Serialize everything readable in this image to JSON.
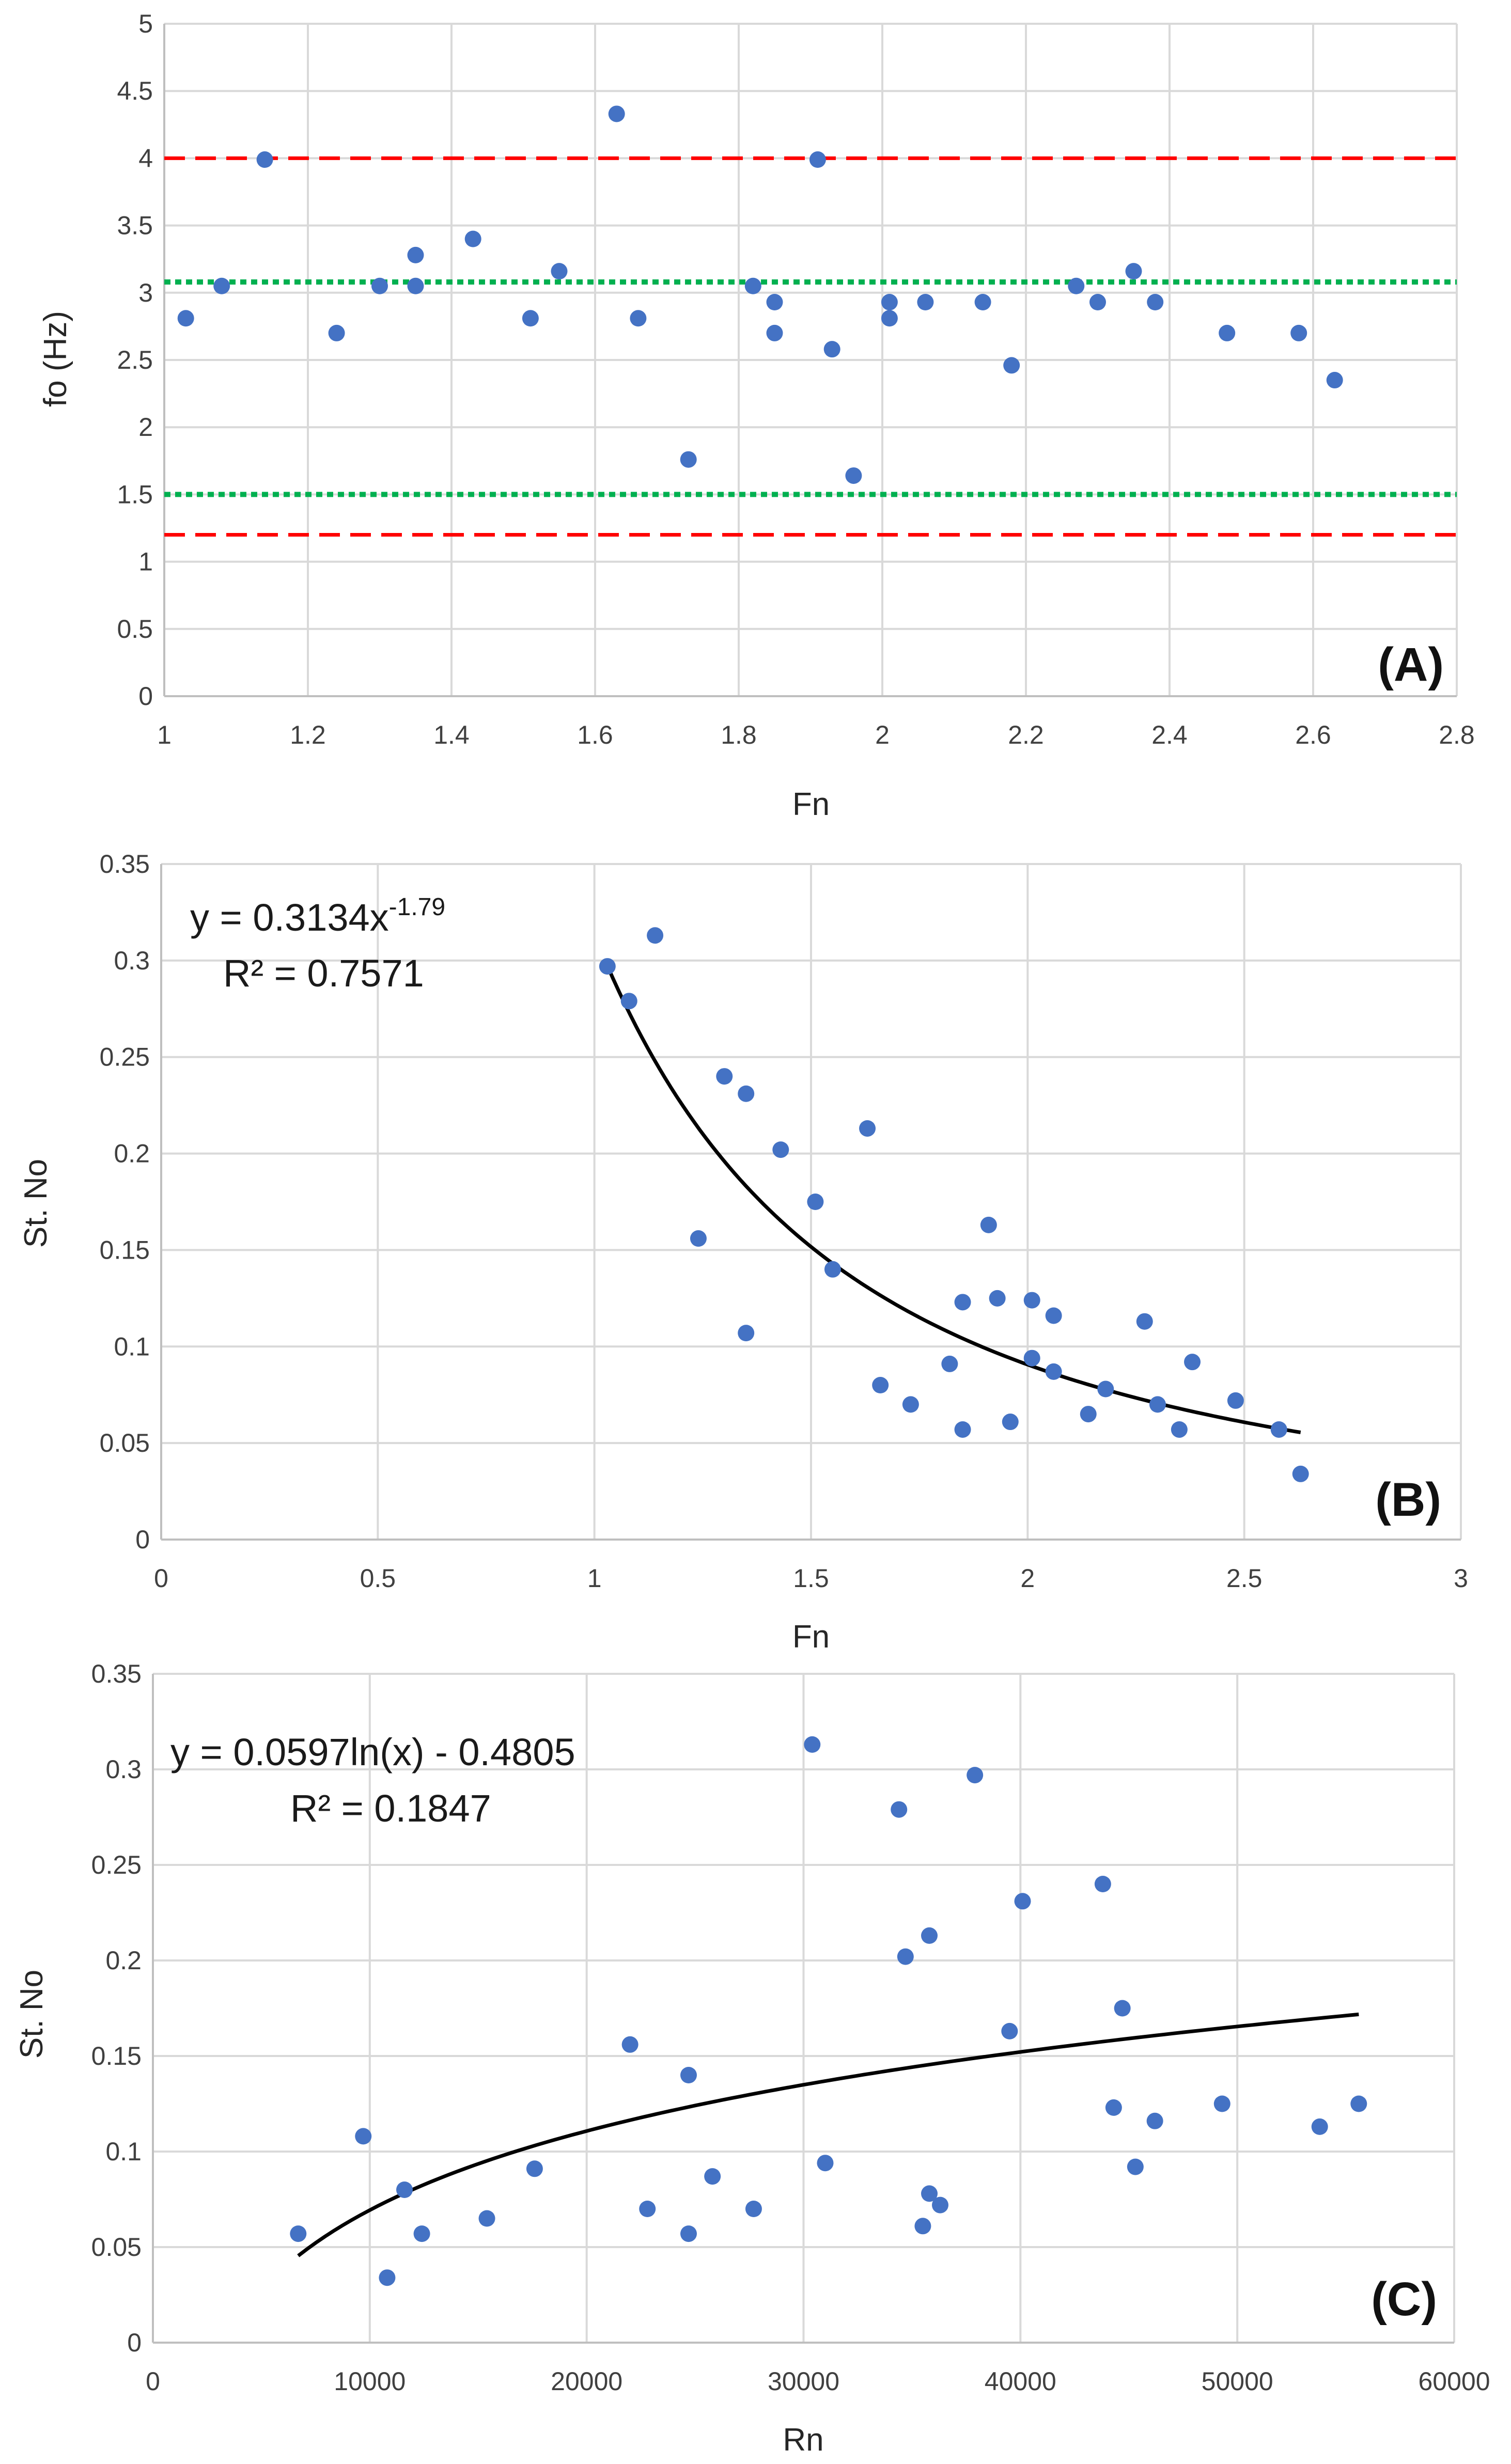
{
  "chart_data": [
    {
      "type": "scatter",
      "panel_label": "(A)",
      "xlabel": "Fn",
      "ylabel": "fo (Hz)",
      "xlim": [
        1,
        2.8
      ],
      "ylim": [
        0,
        5
      ],
      "x_ticks": [
        "1",
        "1.2",
        "1.4",
        "1.6",
        "1.8",
        "2",
        "2.2",
        "2.4",
        "2.6",
        "2.8"
      ],
      "y_ticks": [
        "0",
        "0.5",
        "1",
        "1.5",
        "2",
        "2.5",
        "3",
        "3.5",
        "4",
        "4.5",
        "5"
      ],
      "grid": true,
      "point_color": "#4472c4",
      "points": [
        [
          1.03,
          2.81
        ],
        [
          1.08,
          3.05
        ],
        [
          1.14,
          3.99
        ],
        [
          1.24,
          2.7
        ],
        [
          1.3,
          3.05
        ],
        [
          1.35,
          3.05
        ],
        [
          1.35,
          3.28
        ],
        [
          1.43,
          3.4
        ],
        [
          1.51,
          2.81
        ],
        [
          1.55,
          3.16
        ],
        [
          1.63,
          4.33
        ],
        [
          1.66,
          2.81
        ],
        [
          1.73,
          1.76
        ],
        [
          1.82,
          3.05
        ],
        [
          1.85,
          2.7
        ],
        [
          1.85,
          2.93
        ],
        [
          1.91,
          3.99
        ],
        [
          1.93,
          2.58
        ],
        [
          1.96,
          1.64
        ],
        [
          2.01,
          2.81
        ],
        [
          2.01,
          2.93
        ],
        [
          2.06,
          2.93
        ],
        [
          2.14,
          2.93
        ],
        [
          2.18,
          2.46
        ],
        [
          2.27,
          3.05
        ],
        [
          2.3,
          2.93
        ],
        [
          2.35,
          3.16
        ],
        [
          2.38,
          2.93
        ],
        [
          2.48,
          2.7
        ],
        [
          2.58,
          2.7
        ],
        [
          2.63,
          2.35
        ]
      ],
      "reference_lines": [
        {
          "y": 4.0,
          "color": "#ff0000",
          "style": "dashed"
        },
        {
          "y": 1.2,
          "color": "#ff0000",
          "style": "dashed"
        },
        {
          "y": 3.08,
          "color": "#00b050",
          "style": "dotted"
        },
        {
          "y": 1.5,
          "color": "#00b050",
          "style": "dotted"
        }
      ]
    },
    {
      "type": "scatter",
      "panel_label": "(B)",
      "xlabel": "Fn",
      "ylabel": "St. No",
      "xlim": [
        0,
        3
      ],
      "ylim": [
        0,
        0.35
      ],
      "x_ticks": [
        "0",
        "0.5",
        "1",
        "1.5",
        "2",
        "2.5",
        "3"
      ],
      "y_ticks": [
        "0",
        "0.05",
        "0.1",
        "0.15",
        "0.2",
        "0.25",
        "0.3",
        "0.35"
      ],
      "grid": true,
      "point_color": "#4472c4",
      "points": [
        [
          1.03,
          0.297
        ],
        [
          1.08,
          0.279
        ],
        [
          1.14,
          0.313
        ],
        [
          1.24,
          0.156
        ],
        [
          1.3,
          0.24
        ],
        [
          1.35,
          0.231
        ],
        [
          1.35,
          0.107
        ],
        [
          1.43,
          0.202
        ],
        [
          1.51,
          0.175
        ],
        [
          1.55,
          0.14
        ],
        [
          1.63,
          0.213
        ],
        [
          1.66,
          0.08
        ],
        [
          1.73,
          0.07
        ],
        [
          1.82,
          0.091
        ],
        [
          1.85,
          0.123
        ],
        [
          1.85,
          0.057
        ],
        [
          1.91,
          0.163
        ],
        [
          1.93,
          0.125
        ],
        [
          1.96,
          0.061
        ],
        [
          2.01,
          0.094
        ],
        [
          2.01,
          0.124
        ],
        [
          2.06,
          0.087
        ],
        [
          2.06,
          0.116
        ],
        [
          2.14,
          0.065
        ],
        [
          2.18,
          0.078
        ],
        [
          2.27,
          0.113
        ],
        [
          2.3,
          0.07
        ],
        [
          2.35,
          0.057
        ],
        [
          2.38,
          0.092
        ],
        [
          2.48,
          0.072
        ],
        [
          2.58,
          0.057
        ],
        [
          2.63,
          0.034
        ]
      ],
      "trendline": {
        "kind": "power",
        "a": 0.3134,
        "b": -1.79,
        "x_from": 1.03,
        "x_to": 2.63
      },
      "equation": {
        "line1_main": "y = 0.3134x",
        "line1_exp": "-1.79",
        "line2": "R² = 0.7571"
      }
    },
    {
      "type": "scatter",
      "panel_label": "(C)",
      "xlabel": "Rn",
      "ylabel": "St. No",
      "xlim": [
        0,
        60000
      ],
      "ylim": [
        0,
        0.35
      ],
      "x_ticks": [
        "0",
        "10000",
        "20000",
        "30000",
        "40000",
        "50000",
        "60000"
      ],
      "y_ticks": [
        "0",
        "0.05",
        "0.1",
        "0.15",
        "0.2",
        "0.25",
        "0.3",
        "0.35"
      ],
      "grid": true,
      "point_color": "#4472c4",
      "points": [
        [
          6700,
          0.057
        ],
        [
          9700,
          0.108
        ],
        [
          10800,
          0.034
        ],
        [
          11600,
          0.08
        ],
        [
          12400,
          0.057
        ],
        [
          15400,
          0.065
        ],
        [
          17600,
          0.091
        ],
        [
          22000,
          0.156
        ],
        [
          22800,
          0.07
        ],
        [
          24700,
          0.057
        ],
        [
          24700,
          0.14
        ],
        [
          25800,
          0.087
        ],
        [
          27700,
          0.07
        ],
        [
          30400,
          0.313
        ],
        [
          31000,
          0.094
        ],
        [
          34400,
          0.279
        ],
        [
          34700,
          0.202
        ],
        [
          35500,
          0.061
        ],
        [
          35800,
          0.078
        ],
        [
          35800,
          0.213
        ],
        [
          36300,
          0.072
        ],
        [
          37900,
          0.297
        ],
        [
          39500,
          0.163
        ],
        [
          40100,
          0.231
        ],
        [
          43800,
          0.24
        ],
        [
          44300,
          0.123
        ],
        [
          44700,
          0.175
        ],
        [
          45300,
          0.092
        ],
        [
          46200,
          0.116
        ],
        [
          49300,
          0.125
        ],
        [
          53800,
          0.113
        ],
        [
          55600,
          0.125
        ]
      ],
      "trendline": {
        "kind": "log",
        "a": 0.0597,
        "b": -0.4805,
        "x_from": 6700,
        "x_to": 55600
      },
      "equation": {
        "line1": "y = 0.0597ln(x) - 0.4805",
        "line2": "R² = 0.1847"
      }
    }
  ]
}
